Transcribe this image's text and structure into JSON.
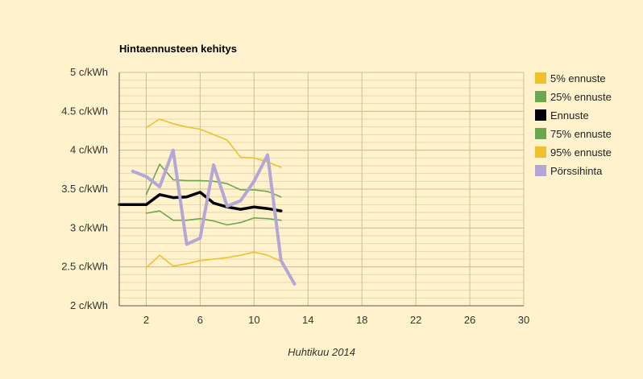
{
  "chart_data": {
    "type": "line",
    "title": "Hintaennusteen kehitys",
    "xlabel": "Huhtikuu 2014",
    "ylabel": "",
    "xlim": [
      0,
      30
    ],
    "ylim": [
      2,
      5
    ],
    "x_ticks": [
      2,
      6,
      10,
      14,
      18,
      22,
      26,
      30
    ],
    "y_ticks": [
      {
        "value": 2,
        "label": "2 c/kWh"
      },
      {
        "value": 2.5,
        "label": "2.5 c/kWh"
      },
      {
        "value": 3,
        "label": "3 c/kWh"
      },
      {
        "value": 3.5,
        "label": "3.5 c/kWh"
      },
      {
        "value": 4,
        "label": "4 c/kWh"
      },
      {
        "value": 4.5,
        "label": "4.5 c/kWh"
      },
      {
        "value": 5,
        "label": "5 c/kWh"
      }
    ],
    "grid": true,
    "legend_position": "right",
    "series": [
      {
        "name": "5% ennuste",
        "color": "#f0c030",
        "x": [
          2,
          3,
          4,
          5,
          6,
          7,
          8,
          9,
          10,
          11,
          12
        ],
        "y": [
          2.49,
          2.65,
          2.51,
          2.54,
          2.58,
          2.6,
          2.62,
          2.65,
          2.69,
          2.65,
          2.57
        ]
      },
      {
        "name": "25% ennuste",
        "color": "#6aa84f",
        "x": [
          2,
          3,
          4,
          5,
          6,
          7,
          8,
          9,
          10,
          11,
          12
        ],
        "y": [
          3.19,
          3.22,
          3.1,
          3.1,
          3.12,
          3.09,
          3.04,
          3.07,
          3.13,
          3.12,
          3.1
        ]
      },
      {
        "name": "Ennuste",
        "color": "#000000",
        "x": [
          0,
          1,
          2,
          3,
          4,
          5,
          6,
          7,
          8,
          9,
          10,
          11,
          12
        ],
        "y": [
          3.3,
          3.3,
          3.3,
          3.43,
          3.39,
          3.4,
          3.46,
          3.32,
          3.27,
          3.24,
          3.27,
          3.25,
          3.22
        ]
      },
      {
        "name": "75% ennuste",
        "color": "#6aa84f",
        "x": [
          2,
          3,
          4,
          5,
          6,
          7,
          8,
          9,
          10,
          11,
          12
        ],
        "y": [
          3.43,
          3.82,
          3.62,
          3.61,
          3.61,
          3.6,
          3.57,
          3.49,
          3.49,
          3.47,
          3.4
        ]
      },
      {
        "name": "95% ennuste",
        "color": "#f0c030",
        "x": [
          2,
          3,
          4,
          5,
          6,
          7,
          8,
          9,
          10,
          11,
          12
        ],
        "y": [
          4.29,
          4.4,
          4.34,
          4.3,
          4.27,
          4.2,
          4.13,
          3.91,
          3.9,
          3.85,
          3.78
        ]
      },
      {
        "name": "Pörssihinta",
        "color": "#b4a7d6",
        "x": [
          1,
          2,
          3,
          4,
          5,
          6,
          7,
          8,
          9,
          10,
          11,
          12,
          13
        ],
        "y": [
          3.73,
          3.66,
          3.53,
          4.0,
          2.79,
          2.87,
          3.81,
          3.28,
          3.35,
          3.6,
          3.94,
          2.58,
          2.28
        ]
      }
    ]
  }
}
